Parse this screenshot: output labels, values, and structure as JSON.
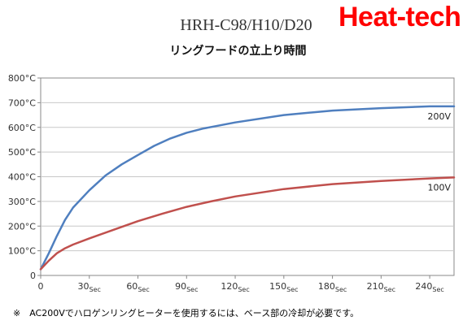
{
  "brand": "Heat-tech",
  "model": "HRH-C98/H10/D20",
  "chart_title": "リングフードの立上り時間",
  "note": "※　AC200Vでハロゲンリングヒーターを使用するには、ベース部の冷却が必要です。",
  "chart_data": {
    "type": "line",
    "title": "リングフードの立上り時間",
    "xlabel": "",
    "ylabel": "",
    "xlim": [
      0,
      255
    ],
    "ylim": [
      0,
      800
    ],
    "grid": true,
    "x_ticks": [
      {
        "value": 0,
        "label": "0",
        "sub": ""
      },
      {
        "value": 30,
        "label": "30",
        "sub": "Sec"
      },
      {
        "value": 60,
        "label": "60",
        "sub": "Sec"
      },
      {
        "value": 90,
        "label": "90",
        "sub": "Sec"
      },
      {
        "value": 120,
        "label": "120",
        "sub": "Sec"
      },
      {
        "value": 150,
        "label": "150",
        "sub": "Sec"
      },
      {
        "value": 180,
        "label": "180",
        "sub": "Sec"
      },
      {
        "value": 210,
        "label": "210",
        "sub": "Sec"
      },
      {
        "value": 240,
        "label": "240",
        "sub": "Sec"
      }
    ],
    "y_ticks": [
      {
        "value": 0,
        "label": "0"
      },
      {
        "value": 100,
        "label": "100°C"
      },
      {
        "value": 200,
        "label": "200°C"
      },
      {
        "value": 300,
        "label": "300°C"
      },
      {
        "value": 400,
        "label": "400°C"
      },
      {
        "value": 500,
        "label": "500°C"
      },
      {
        "value": 600,
        "label": "600°C"
      },
      {
        "value": 700,
        "label": "700°C"
      },
      {
        "value": 800,
        "label": "800°C"
      }
    ],
    "series": [
      {
        "name": "200V",
        "color": "#4f7fbf",
        "x": [
          0,
          5,
          10,
          15,
          20,
          30,
          40,
          50,
          60,
          70,
          80,
          90,
          100,
          120,
          150,
          180,
          210,
          240,
          255
        ],
        "y": [
          25,
          90,
          160,
          225,
          275,
          345,
          405,
          450,
          488,
          525,
          555,
          578,
          595,
          620,
          650,
          668,
          678,
          685,
          685
        ]
      },
      {
        "name": "100V",
        "color": "#c0504d",
        "x": [
          0,
          5,
          10,
          15,
          20,
          30,
          45,
          60,
          75,
          90,
          105,
          120,
          150,
          180,
          210,
          240,
          255
        ],
        "y": [
          25,
          60,
          90,
          110,
          125,
          150,
          185,
          220,
          250,
          278,
          300,
          320,
          350,
          370,
          383,
          393,
          397
        ]
      }
    ],
    "annotations": [
      {
        "text": "200V",
        "series": "200V"
      },
      {
        "text": "100V",
        "series": "100V"
      }
    ]
  }
}
